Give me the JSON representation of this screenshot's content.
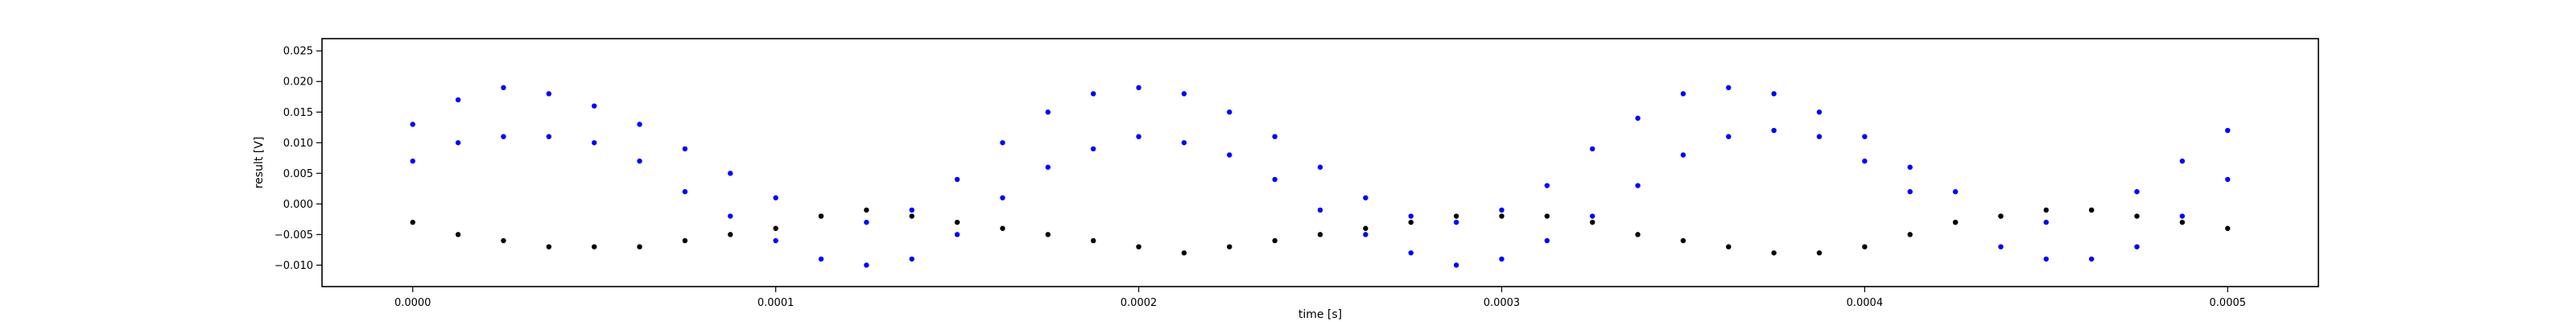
{
  "chart_data": {
    "type": "scatter",
    "title": "",
    "xlabel": "time [s]",
    "ylabel": "result [V]",
    "xlim": [
      -2.5e-05,
      0.000525
    ],
    "ylim": [
      -0.0135,
      0.027
    ],
    "x_ticks": [
      0.0,
      0.0001,
      0.0002,
      0.0003,
      0.0004,
      0.0005
    ],
    "x_tick_labels": [
      "0.0000",
      "0.0001",
      "0.0002",
      "0.0003",
      "0.0004",
      "0.0005"
    ],
    "y_ticks": [
      -0.01,
      -0.005,
      0.0,
      0.005,
      0.01,
      0.015,
      0.02,
      0.025
    ],
    "y_tick_labels": [
      "−0.010",
      "−0.005",
      "0.000",
      "0.005",
      "0.010",
      "0.015",
      "0.020",
      "0.025"
    ],
    "grid": false,
    "legend": "none",
    "series": [
      {
        "color": "#0000ff",
        "marker": "dot",
        "x": [
          0.0,
          1.25e-05,
          2.5e-05,
          3.75e-05,
          5e-05,
          6.25e-05,
          7.5e-05,
          8.75e-05,
          0.0001,
          0.0001125,
          0.000125,
          0.0001375,
          0.00015,
          0.0001625,
          0.000175,
          0.0001875,
          0.0002,
          0.0002125,
          0.000225,
          0.0002375,
          0.00025,
          0.0002625,
          0.000275,
          0.0002875,
          0.0003,
          0.0003125,
          0.000325,
          0.0003375,
          0.00035,
          0.0003625,
          0.000375,
          0.0003875,
          0.0004,
          0.0004125,
          0.000425,
          0.0004375,
          0.00045,
          0.0004625,
          0.000475,
          0.0004875,
          0.0005
        ],
        "y": [
          0.013,
          0.017,
          0.019,
          0.018,
          0.016,
          0.013,
          0.009,
          0.005,
          0.001,
          -0.002,
          -0.003,
          -0.001,
          0.004,
          0.01,
          0.015,
          0.018,
          0.019,
          0.018,
          0.015,
          0.011,
          0.006,
          0.001,
          -0.002,
          -0.003,
          -0.001,
          0.003,
          0.009,
          0.014,
          0.018,
          0.019,
          0.018,
          0.015,
          0.011,
          0.006,
          0.002,
          -0.002,
          -0.003,
          -0.001,
          0.002,
          0.007,
          0.012
        ]
      },
      {
        "color": "#0000ff",
        "marker": "dot",
        "x": [
          0.0,
          1.25e-05,
          2.5e-05,
          3.75e-05,
          5e-05,
          6.25e-05,
          7.5e-05,
          8.75e-05,
          0.0001,
          0.0001125,
          0.000125,
          0.0001375,
          0.00015,
          0.0001625,
          0.000175,
          0.0001875,
          0.0002,
          0.0002125,
          0.000225,
          0.0002375,
          0.00025,
          0.0002625,
          0.000275,
          0.0002875,
          0.0003,
          0.0003125,
          0.000325,
          0.0003375,
          0.00035,
          0.0003625,
          0.000375,
          0.0003875,
          0.0004,
          0.0004125,
          0.000425,
          0.0004375,
          0.00045,
          0.0004625,
          0.000475,
          0.0004875,
          0.0005
        ],
        "y": [
          0.007,
          0.01,
          0.011,
          0.011,
          0.01,
          0.007,
          0.002,
          -0.002,
          -0.006,
          -0.009,
          -0.01,
          -0.009,
          -0.005,
          0.001,
          0.006,
          0.009,
          0.011,
          0.01,
          0.008,
          0.004,
          -0.001,
          -0.005,
          -0.008,
          -0.01,
          -0.009,
          -0.006,
          -0.002,
          0.003,
          0.008,
          0.011,
          0.012,
          0.011,
          0.007,
          0.002,
          -0.003,
          -0.007,
          -0.009,
          -0.009,
          -0.007,
          -0.002,
          0.004
        ]
      },
      {
        "color": "#000000",
        "marker": "dot",
        "x": [
          0.0,
          1.25e-05,
          2.5e-05,
          3.75e-05,
          5e-05,
          6.25e-05,
          7.5e-05,
          8.75e-05,
          0.0001,
          0.0001125,
          0.000125,
          0.0001375,
          0.00015,
          0.0001625,
          0.000175,
          0.0001875,
          0.0002,
          0.0002125,
          0.000225,
          0.0002375,
          0.00025,
          0.0002625,
          0.000275,
          0.0002875,
          0.0003,
          0.0003125,
          0.000325,
          0.0003375,
          0.00035,
          0.0003625,
          0.000375,
          0.0003875,
          0.0004,
          0.0004125,
          0.000425,
          0.0004375,
          0.00045,
          0.0004625,
          0.000475,
          0.0004875,
          0.0005
        ],
        "y": [
          -0.003,
          -0.005,
          -0.006,
          -0.007,
          -0.007,
          -0.007,
          -0.006,
          -0.005,
          -0.004,
          -0.002,
          -0.001,
          -0.002,
          -0.003,
          -0.004,
          -0.005,
          -0.006,
          -0.007,
          -0.008,
          -0.007,
          -0.006,
          -0.005,
          -0.004,
          -0.003,
          -0.002,
          -0.002,
          -0.002,
          -0.003,
          -0.005,
          -0.006,
          -0.007,
          -0.008,
          -0.008,
          -0.007,
          -0.005,
          -0.003,
          -0.002,
          -0.001,
          -0.001,
          -0.002,
          -0.003,
          -0.004
        ]
      }
    ]
  }
}
